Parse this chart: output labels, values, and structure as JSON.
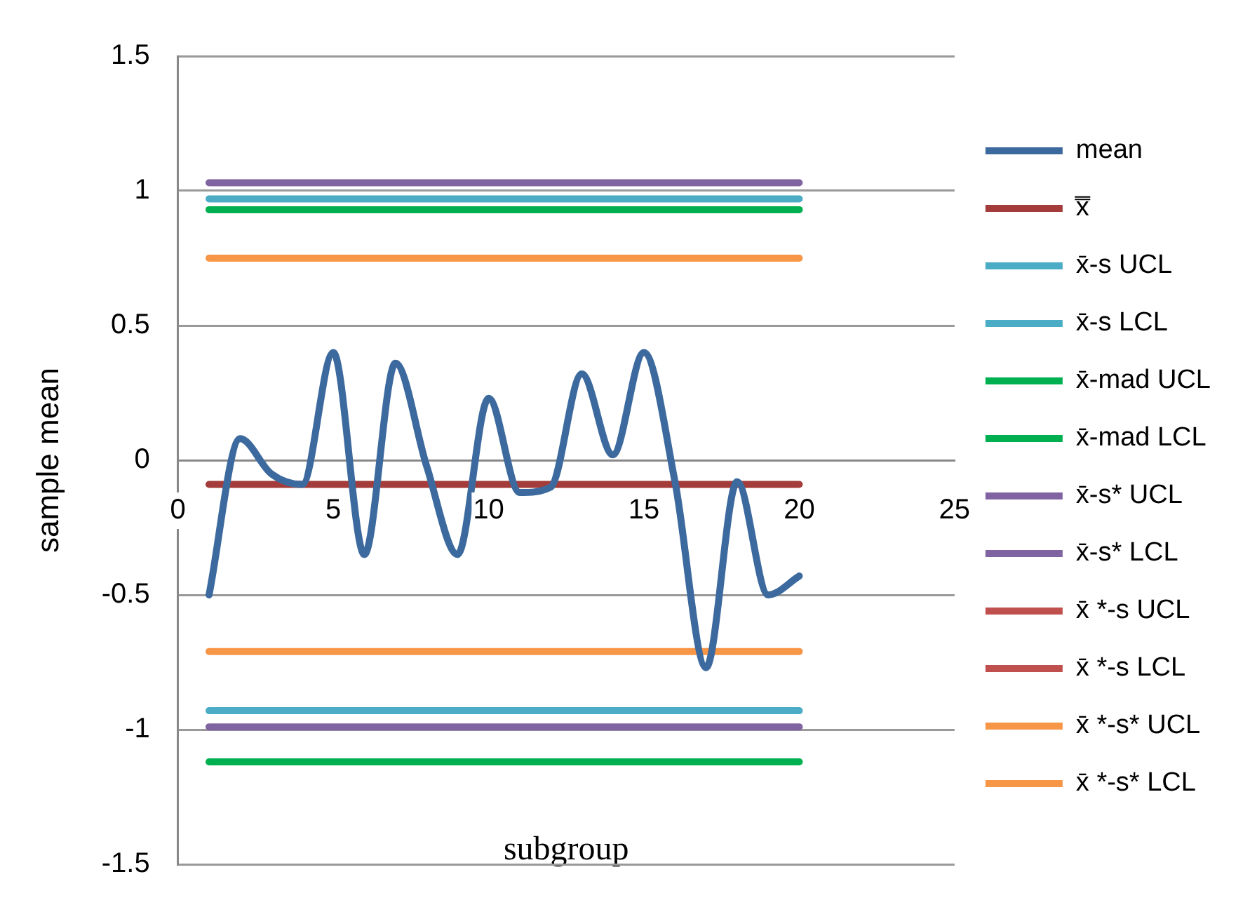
{
  "chart_data": {
    "type": "line",
    "xlabel": "subgroup",
    "ylabel": "sample mean",
    "xlim": [
      0,
      25
    ],
    "xticks": [
      0,
      5,
      10,
      15,
      20,
      25
    ],
    "ylim": [
      -1.5,
      1.5
    ],
    "yticks": [
      -1.5,
      -1,
      -0.5,
      0,
      0.5,
      1,
      1.5
    ],
    "grid": "y",
    "legend": "right",
    "marker": "none",
    "line_style": "solid",
    "series": [
      {
        "name": "mean",
        "color": "#3d6a9e",
        "x": [
          1,
          2,
          3,
          4,
          5,
          6,
          7,
          8,
          9,
          10,
          11,
          12,
          13,
          14,
          15,
          16,
          17,
          18,
          19,
          20
        ],
        "values": [
          -0.5,
          0.08,
          -0.05,
          -0.09,
          0.4,
          -0.35,
          0.36,
          -0.02,
          -0.35,
          0.23,
          -0.12,
          -0.1,
          0.32,
          0.02,
          0.4,
          -0.08,
          -0.77,
          -0.08,
          -0.5,
          -0.43
        ]
      },
      {
        "name": "x̿",
        "color": "#a33c3a",
        "x": [
          1,
          20
        ],
        "values": [
          -0.09,
          -0.09
        ]
      },
      {
        "name": "x̄-s UCL",
        "color": "#4bacc6",
        "x": [
          1,
          20
        ],
        "values": [
          0.97,
          0.97
        ]
      },
      {
        "name": "x̄-s LCL",
        "color": "#4bacc6",
        "x": [
          1,
          20
        ],
        "values": [
          -0.93,
          -0.93
        ]
      },
      {
        "name": "x̄-mad UCL",
        "color": "#00b050",
        "x": [
          1,
          20
        ],
        "values": [
          0.93,
          0.93
        ]
      },
      {
        "name": "x̄-mad LCL",
        "color": "#00b050",
        "x": [
          1,
          20
        ],
        "values": [
          -1.12,
          -1.12
        ]
      },
      {
        "name": "x̄-s* UCL",
        "color": "#8064a2",
        "x": [
          1,
          20
        ],
        "values": [
          1.03,
          1.03
        ]
      },
      {
        "name": "x̄-s* LCL",
        "color": "#8064a2",
        "x": [
          1,
          20
        ],
        "values": [
          -0.99,
          -0.99
        ]
      },
      {
        "name": "x̄ *-s UCL",
        "color": "#c0504d",
        "values": [
          null,
          null
        ]
      },
      {
        "name": "x̄ *-s LCL",
        "color": "#c0504d",
        "values": [
          null,
          null
        ]
      },
      {
        "name": "x̄ *-s* UCL",
        "color": "#f79646",
        "x": [
          1,
          20
        ],
        "values": [
          0.75,
          0.75
        ]
      },
      {
        "name": "x̄ *-s* LCL",
        "color": "#f79646",
        "x": [
          1,
          20
        ],
        "values": [
          -0.71,
          -0.71
        ]
      }
    ]
  }
}
